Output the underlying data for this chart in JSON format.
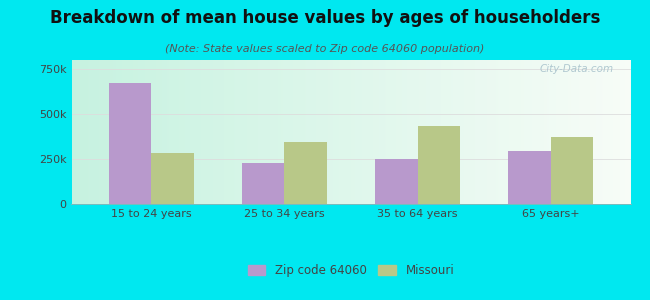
{
  "title": "Breakdown of mean house values by ages of householders",
  "subtitle": "(Note: State values scaled to Zip code 64060 population)",
  "categories": [
    "15 to 24 years",
    "25 to 34 years",
    "35 to 64 years",
    "65 years+"
  ],
  "zip_values": [
    670000,
    230000,
    252000,
    292000
  ],
  "state_values": [
    285000,
    345000,
    435000,
    370000
  ],
  "zip_color": "#b899cc",
  "state_color": "#b8c888",
  "background_outer": "#00e8f0",
  "ylim": [
    0,
    800000
  ],
  "yticks": [
    0,
    250000,
    500000,
    750000
  ],
  "ytick_labels": [
    "0",
    "250k",
    "500k",
    "750k"
  ],
  "legend_zip": "Zip code 64060",
  "legend_state": "Missouri",
  "title_fontsize": 12,
  "subtitle_fontsize": 8,
  "bar_width": 0.32
}
